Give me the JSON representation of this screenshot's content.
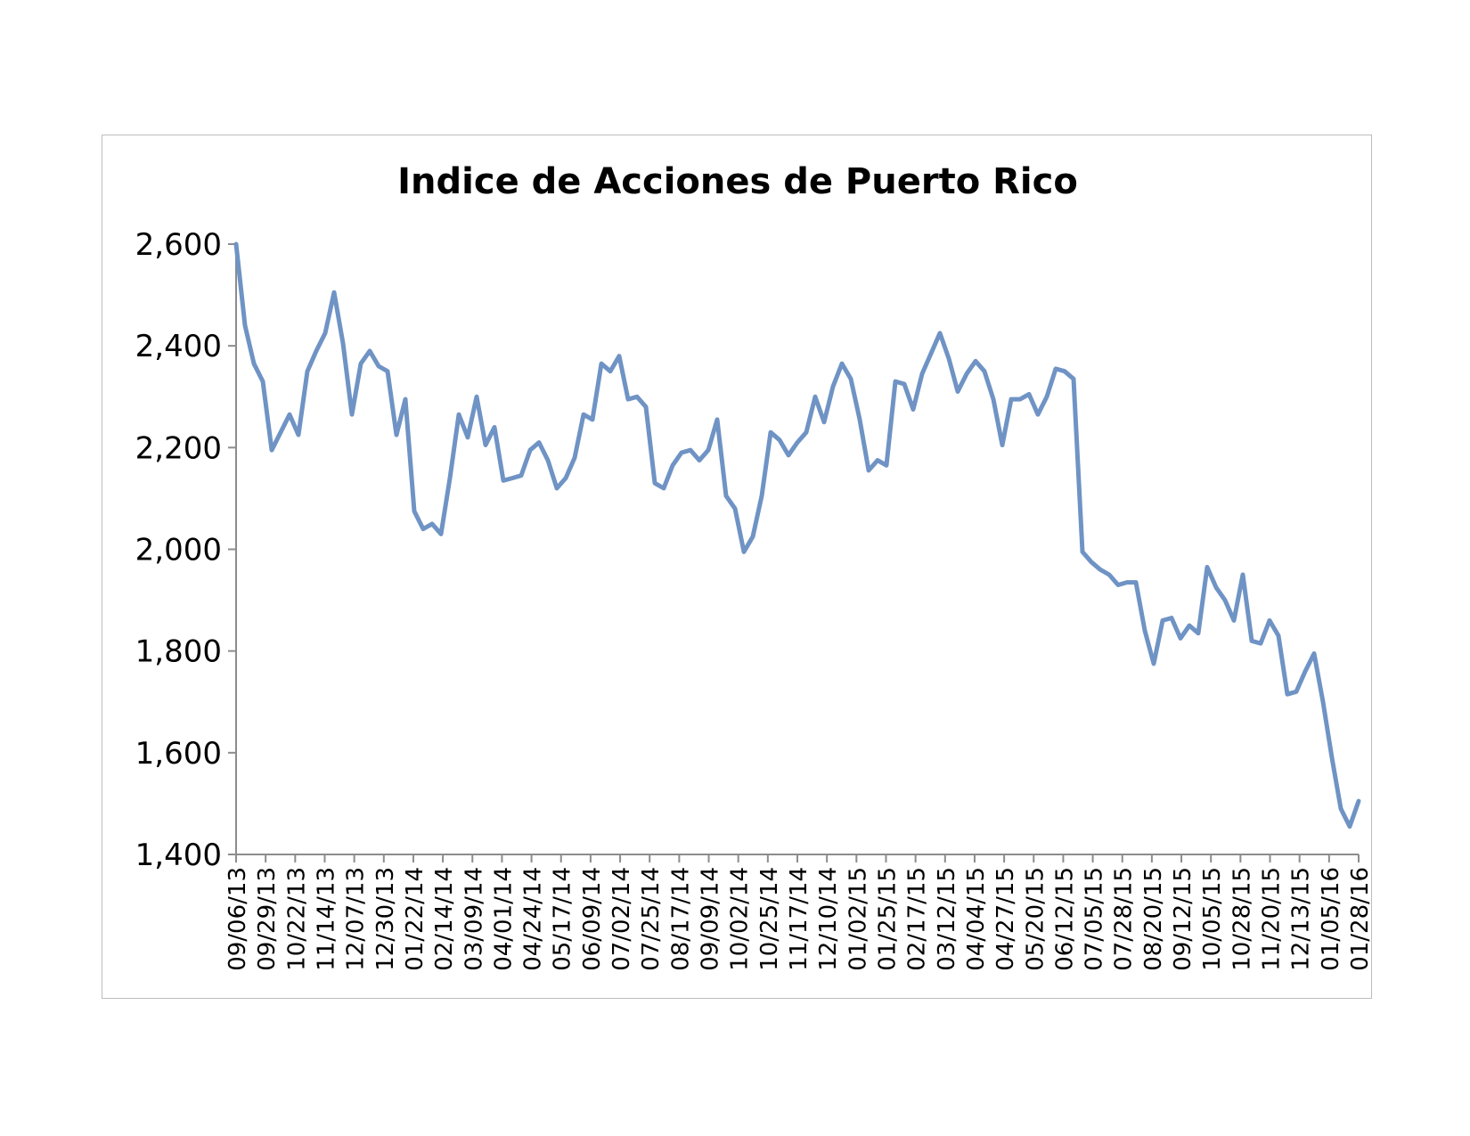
{
  "chart_data": {
    "type": "line",
    "title": "Indice de Acciones de Puerto Rico",
    "xlabel": "",
    "ylabel": "",
    "ylim": [
      1400,
      2600
    ],
    "yticks": [
      1400,
      1600,
      1800,
      2000,
      2200,
      2400,
      2600
    ],
    "ytick_labels": [
      "1,400",
      "1,600",
      "1,800",
      "2,000",
      "2,200",
      "2,400",
      "2,600"
    ],
    "xtick_labels": [
      "09/06/13",
      "09/29/13",
      "10/22/13",
      "11/14/13",
      "12/07/13",
      "12/30/13",
      "01/22/14",
      "02/14/14",
      "03/09/14",
      "04/01/14",
      "04/24/14",
      "05/17/14",
      "06/09/14",
      "07/02/14",
      "07/25/14",
      "08/17/14",
      "09/09/14",
      "10/02/14",
      "10/25/14",
      "11/17/14",
      "12/10/14",
      "01/02/15",
      "01/25/15",
      "02/17/15",
      "03/12/15",
      "04/04/15",
      "04/27/15",
      "05/20/15",
      "06/12/15",
      "07/05/15",
      "07/28/15",
      "08/20/15",
      "09/12/15",
      "10/05/15",
      "10/28/15",
      "11/20/15",
      "12/13/15",
      "01/05/16",
      "01/28/16"
    ],
    "grid": false,
    "legend": "none",
    "color": "#6f93c4",
    "series": [
      {
        "values": [
          2600,
          2440,
          2365,
          2330,
          2195,
          2230,
          2265,
          2225,
          2350,
          2390,
          2425,
          2505,
          2405,
          2265,
          2365,
          2390,
          2360,
          2350,
          2225,
          2295,
          2075,
          2040,
          2050,
          2030,
          2140,
          2265,
          2220,
          2300,
          2205,
          2240,
          2135,
          2140,
          2145,
          2195,
          2210,
          2175,
          2120,
          2140,
          2180,
          2265,
          2255,
          2365,
          2350,
          2380,
          2295,
          2300,
          2280,
          2130,
          2120,
          2165,
          2190,
          2195,
          2175,
          2195,
          2255,
          2105,
          2080,
          1995,
          2025,
          2105,
          2230,
          2215,
          2185,
          2210,
          2230,
          2300,
          2250,
          2320,
          2365,
          2335,
          2255,
          2155,
          2175,
          2165,
          2330,
          2325,
          2275,
          2345,
          2385,
          2425,
          2375,
          2310,
          2345,
          2370,
          2350,
          2295,
          2205,
          2295,
          2295,
          2305,
          2265,
          2300,
          2355,
          2350,
          2335,
          1995,
          1975,
          1960,
          1950,
          1930,
          1935,
          1935,
          1840,
          1775,
          1860,
          1865,
          1825,
          1850,
          1835,
          1965,
          1925,
          1900,
          1860,
          1950,
          1820,
          1815,
          1860,
          1830,
          1715,
          1720,
          1760,
          1795,
          1700,
          1590,
          1490,
          1455,
          1505
        ]
      }
    ]
  }
}
